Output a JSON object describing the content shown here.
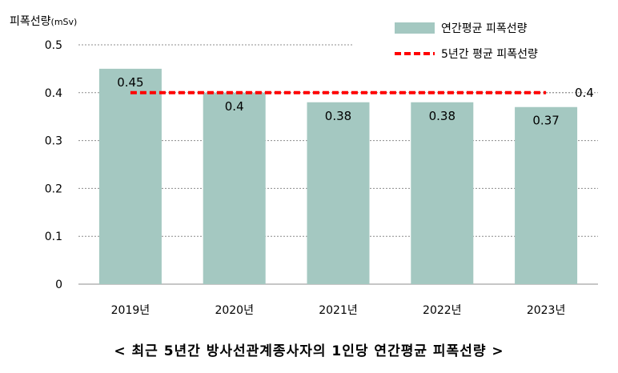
{
  "chart_data": {
    "type": "bar",
    "ylabel": "피폭선량",
    "yunit": "(mSv)",
    "categories": [
      "2019년",
      "2020년",
      "2021년",
      "2022년",
      "2023년"
    ],
    "series": [
      {
        "name": "연간평균 피폭선량",
        "type": "bar",
        "values": [
          0.45,
          0.4,
          0.38,
          0.38,
          0.37
        ],
        "data_labels": [
          "0.45",
          "0.4",
          "0.38",
          "0.38",
          "0.37"
        ],
        "color": "#a4c8c1"
      },
      {
        "name": "5년간 평균 피폭선량",
        "type": "line",
        "style": "dashed",
        "value": 0.4,
        "data_label": "0.4",
        "color": "#ff0000"
      }
    ],
    "yticks": [
      "0",
      "0.1",
      "0.2",
      "0.3",
      "0.4",
      "0.5"
    ],
    "ylim": [
      0,
      0.5
    ],
    "grid": true,
    "legend": "top-right"
  },
  "caption": "< 최근 5년간 방사선관계종사자의 1인당 연간평균 피폭선량 >"
}
